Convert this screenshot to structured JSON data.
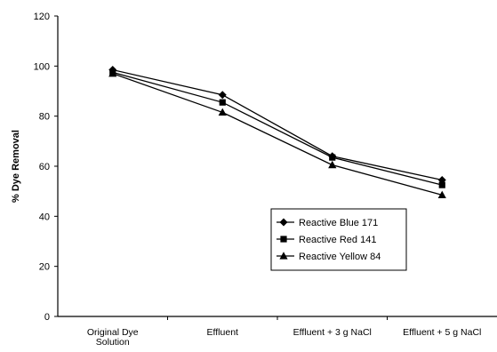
{
  "chart_data": {
    "type": "line",
    "title": "",
    "xlabel": "",
    "ylabel": "% Dye Removal",
    "ylim": [
      0,
      120
    ],
    "yticks": [
      0,
      20,
      40,
      60,
      80,
      100,
      120
    ],
    "grid": false,
    "legend_position": "lower-right inside plot",
    "categories": [
      [
        "Original Dye",
        "Solution"
      ],
      [
        "Effluent"
      ],
      [
        "Effluent + 3 g NaCl"
      ],
      [
        "Effluent + 5 g NaCl"
      ]
    ],
    "series": [
      {
        "name": "Reactive Blue 171",
        "marker": "diamond",
        "values": [
          98.5,
          88.5,
          64,
          54.5
        ]
      },
      {
        "name": "Reactive Red 141",
        "marker": "square",
        "values": [
          97.5,
          85.5,
          63.5,
          52.5
        ]
      },
      {
        "name": "Reactive Yellow 84",
        "marker": "triangle",
        "values": [
          97,
          81.5,
          60.5,
          48.5
        ]
      }
    ]
  }
}
